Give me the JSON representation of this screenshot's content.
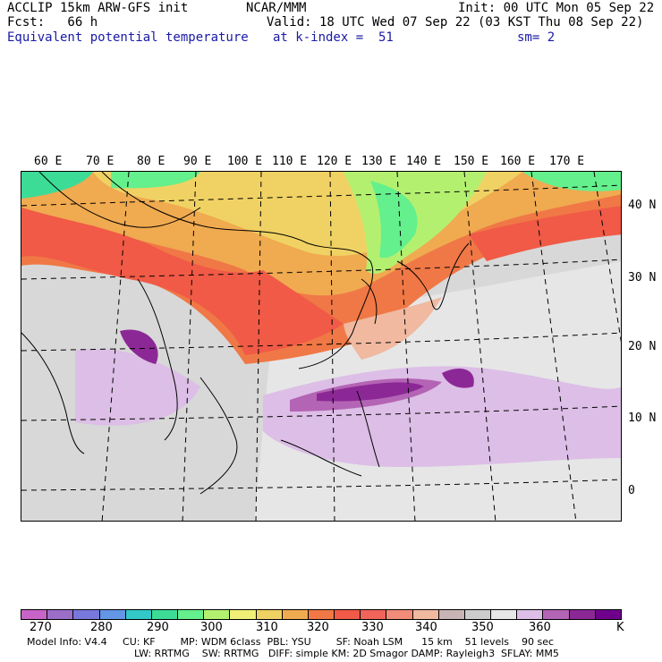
{
  "header": {
    "left1": "ACCLIP 15km ARW-GFS init",
    "left2": "Fcst:   66 h",
    "left3": "Equivalent potential temperature",
    "center1": "NCAR/MMM",
    "center2": "Valid: 18 UTC Wed 07 Sep 22 (03 KST Thu 08 Sep 22)",
    "center3": "at k-index =  51",
    "right1": "Init: 00 UTC Mon 05 Sep 22",
    "right3": "sm= 2"
  },
  "longitudes": [
    "60 E",
    "70 E",
    "80 E",
    "90 E",
    "100 E",
    "110 E",
    "120 E",
    "130 E",
    "140 E",
    "150 E",
    "160 E",
    "170 E"
  ],
  "latitudes": [
    "40 N",
    "30 N",
    "20 N",
    "10 N",
    "0"
  ],
  "colorbar": {
    "colors": [
      "#c864c8",
      "#9b6fc8",
      "#7878dc",
      "#6496e6",
      "#32c8c8",
      "#3cdc96",
      "#64f08c",
      "#b4f070",
      "#f0f078",
      "#f0d264",
      "#f0aa50",
      "#f07846",
      "#f05a46",
      "#f0645a",
      "#f08c78",
      "#f0b9a0",
      "#c8b4b4",
      "#cccccc",
      "#e6e6e6",
      "#dcbee6",
      "#b464b4",
      "#8c2896",
      "#6e008c"
    ],
    "labels": [
      "270",
      "280",
      "290",
      "300",
      "310",
      "320",
      "330",
      "340",
      "350",
      "360"
    ],
    "unit": "K"
  },
  "footer": {
    "line1": "Model Info: V4.4     CU: KF        MP: WDM 6class  PBL: YSU        SF: Noah LSM      15 km    51 levels    90 sec",
    "line2": "LW: RRTMG    SW: RRTMG   DIFF: simple KM: 2D Smagor DAMP: Rayleigh3  SFLAY: MM5"
  }
}
